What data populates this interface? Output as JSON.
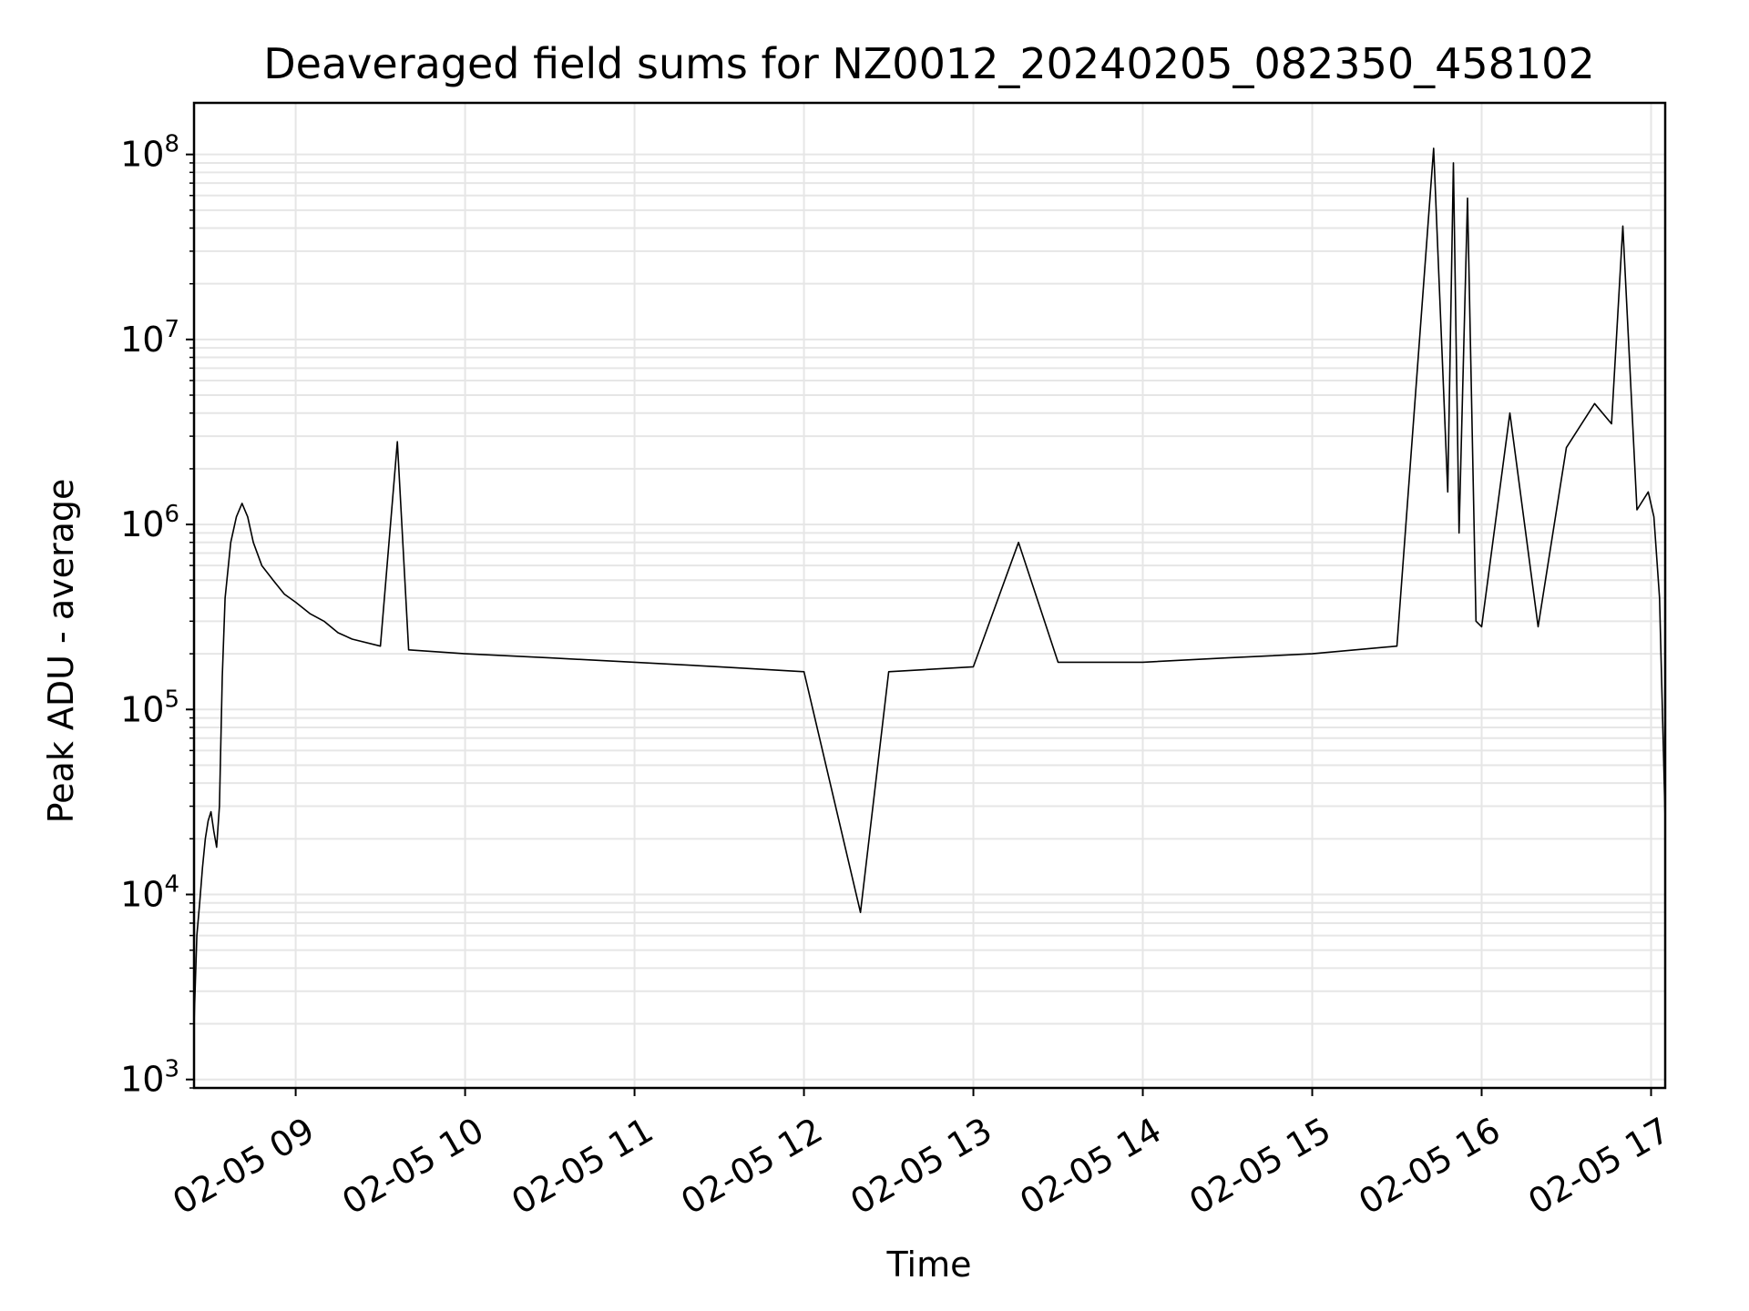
{
  "chart_data": {
    "type": "line",
    "title": "Deaveraged field sums for NZ0012_20240205_082350_458102",
    "xlabel": "Time",
    "ylabel": "Peak ADU - average",
    "yscale": "log",
    "ylim": [
      900,
      190000000
    ],
    "xlim": [
      "2024-02-05 08:24",
      "2024-02-05 17:05"
    ],
    "grid": true,
    "grid_color": "#e6e6e6",
    "line_color": "#000000",
    "x_ticks": [
      {
        "label": "02-05 09",
        "t": "2024-02-05 09:00"
      },
      {
        "label": "02-05 10",
        "t": "2024-02-05 10:00"
      },
      {
        "label": "02-05 11",
        "t": "2024-02-05 11:00"
      },
      {
        "label": "02-05 12",
        "t": "2024-02-05 12:00"
      },
      {
        "label": "02-05 13",
        "t": "2024-02-05 13:00"
      },
      {
        "label": "02-05 14",
        "t": "2024-02-05 14:00"
      },
      {
        "label": "02-05 15",
        "t": "2024-02-05 15:00"
      },
      {
        "label": "02-05 16",
        "t": "2024-02-05 16:00"
      },
      {
        "label": "02-05 17",
        "t": "2024-02-05 17:00"
      }
    ],
    "y_ticks": [
      {
        "base": "10",
        "exp": "3",
        "value": 1000
      },
      {
        "base": "10",
        "exp": "4",
        "value": 10000
      },
      {
        "base": "10",
        "exp": "5",
        "value": 100000
      },
      {
        "base": "10",
        "exp": "6",
        "value": 1000000
      },
      {
        "base": "10",
        "exp": "7",
        "value": 10000000
      },
      {
        "base": "10",
        "exp": "8",
        "value": 100000000
      }
    ],
    "series": [
      {
        "points": [
          [
            "2024-02-05 08:24",
            2000
          ],
          [
            "2024-02-05 08:25",
            6000
          ],
          [
            "2024-02-05 08:26",
            9000
          ],
          [
            "2024-02-05 08:27",
            14000
          ],
          [
            "2024-02-05 08:28",
            20000
          ],
          [
            "2024-02-05 08:29",
            25000
          ],
          [
            "2024-02-05 08:30",
            28000
          ],
          [
            "2024-02-05 08:31",
            22000
          ],
          [
            "2024-02-05 08:32",
            18000
          ],
          [
            "2024-02-05 08:33",
            30000
          ],
          [
            "2024-02-05 08:34",
            150000
          ],
          [
            "2024-02-05 08:35",
            400000
          ],
          [
            "2024-02-05 08:37",
            800000
          ],
          [
            "2024-02-05 08:39",
            1100000
          ],
          [
            "2024-02-05 08:41",
            1300000
          ],
          [
            "2024-02-05 08:43",
            1100000
          ],
          [
            "2024-02-05 08:45",
            800000
          ],
          [
            "2024-02-05 08:48",
            600000
          ],
          [
            "2024-02-05 08:52",
            500000
          ],
          [
            "2024-02-05 08:56",
            420000
          ],
          [
            "2024-02-05 09:00",
            380000
          ],
          [
            "2024-02-05 09:05",
            330000
          ],
          [
            "2024-02-05 09:10",
            300000
          ],
          [
            "2024-02-05 09:15",
            260000
          ],
          [
            "2024-02-05 09:20",
            240000
          ],
          [
            "2024-02-05 09:30",
            220000
          ],
          [
            "2024-02-05 09:36",
            2800000
          ],
          [
            "2024-02-05 09:40",
            210000
          ],
          [
            "2024-02-05 10:00",
            200000
          ],
          [
            "2024-02-05 10:30",
            190000
          ],
          [
            "2024-02-05 11:00",
            180000
          ],
          [
            "2024-02-05 11:30",
            170000
          ],
          [
            "2024-02-05 12:00",
            160000
          ],
          [
            "2024-02-05 12:20",
            8000
          ],
          [
            "2024-02-05 12:30",
            160000
          ],
          [
            "2024-02-05 13:00",
            170000
          ],
          [
            "2024-02-05 13:16",
            800000
          ],
          [
            "2024-02-05 13:30",
            180000
          ],
          [
            "2024-02-05 14:00",
            180000
          ],
          [
            "2024-02-05 14:30",
            190000
          ],
          [
            "2024-02-05 15:00",
            200000
          ],
          [
            "2024-02-05 15:30",
            220000
          ],
          [
            "2024-02-05 15:43",
            108000000
          ],
          [
            "2024-02-05 15:48",
            1500000
          ],
          [
            "2024-02-05 15:50",
            90000000
          ],
          [
            "2024-02-05 15:52",
            900000
          ],
          [
            "2024-02-05 15:55",
            58000000
          ],
          [
            "2024-02-05 15:58",
            300000
          ],
          [
            "2024-02-05 16:00",
            280000
          ],
          [
            "2024-02-05 16:10",
            4000000
          ],
          [
            "2024-02-05 16:20",
            280000
          ],
          [
            "2024-02-05 16:30",
            2600000
          ],
          [
            "2024-02-05 16:40",
            4500000
          ],
          [
            "2024-02-05 16:46",
            3500000
          ],
          [
            "2024-02-05 16:50",
            41000000
          ],
          [
            "2024-02-05 16:55",
            1200000
          ],
          [
            "2024-02-05 16:59",
            1500000
          ],
          [
            "2024-02-05 17:01",
            1100000
          ],
          [
            "2024-02-05 17:03",
            400000
          ],
          [
            "2024-02-05 17:05",
            25000
          ]
        ]
      }
    ]
  }
}
